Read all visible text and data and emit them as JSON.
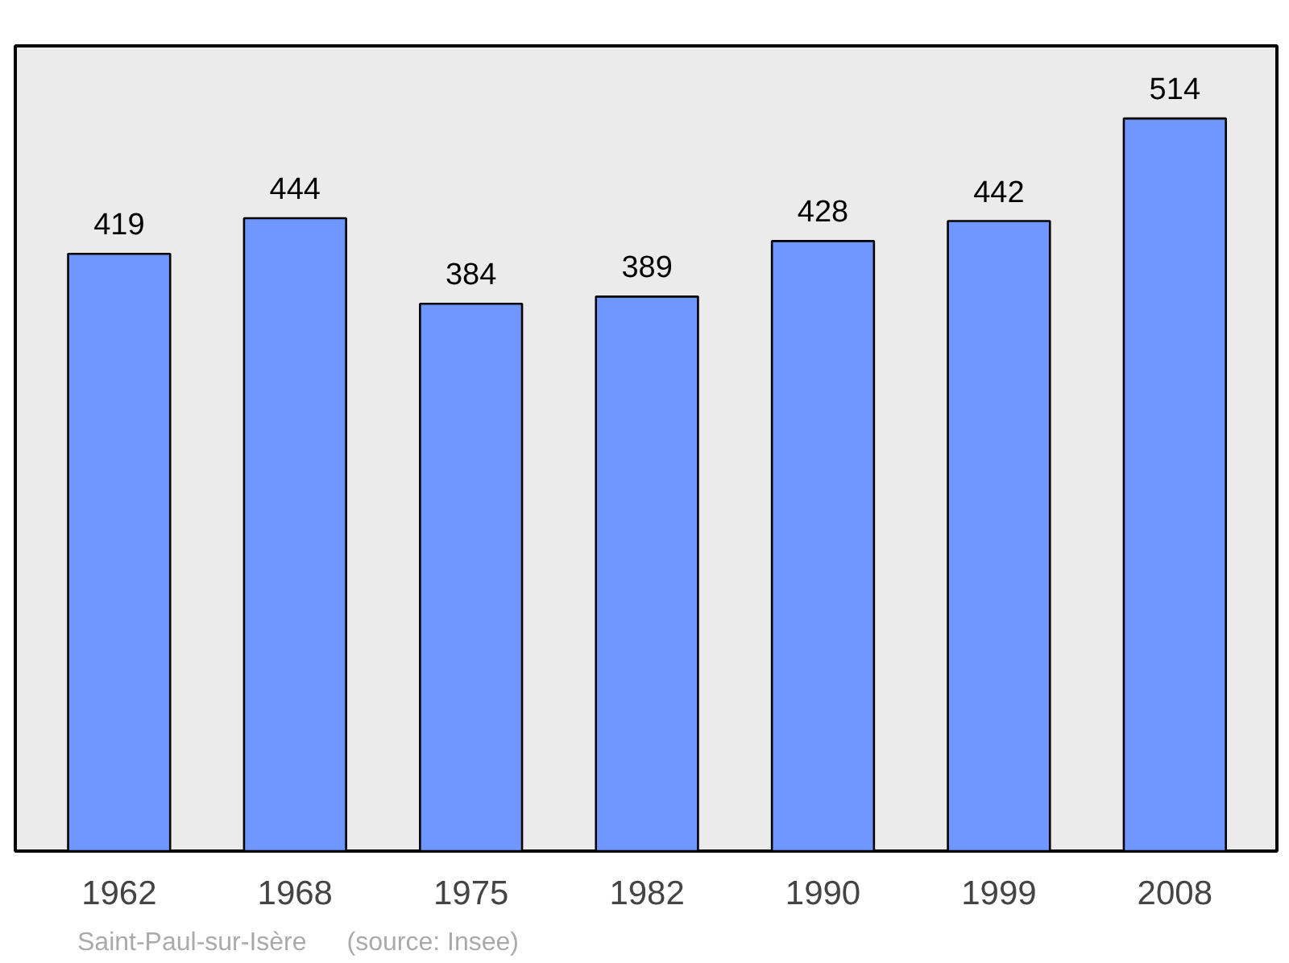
{
  "chart_data": {
    "type": "bar",
    "categories": [
      "1962",
      "1968",
      "1975",
      "1982",
      "1990",
      "1999",
      "2008"
    ],
    "values": [
      419,
      444,
      384,
      389,
      428,
      442,
      514
    ],
    "color": "#7096ff",
    "data_labels": true,
    "annotations": [
      "Saint-Paul-sur-Isère",
      "(source: Insee)"
    ]
  }
}
